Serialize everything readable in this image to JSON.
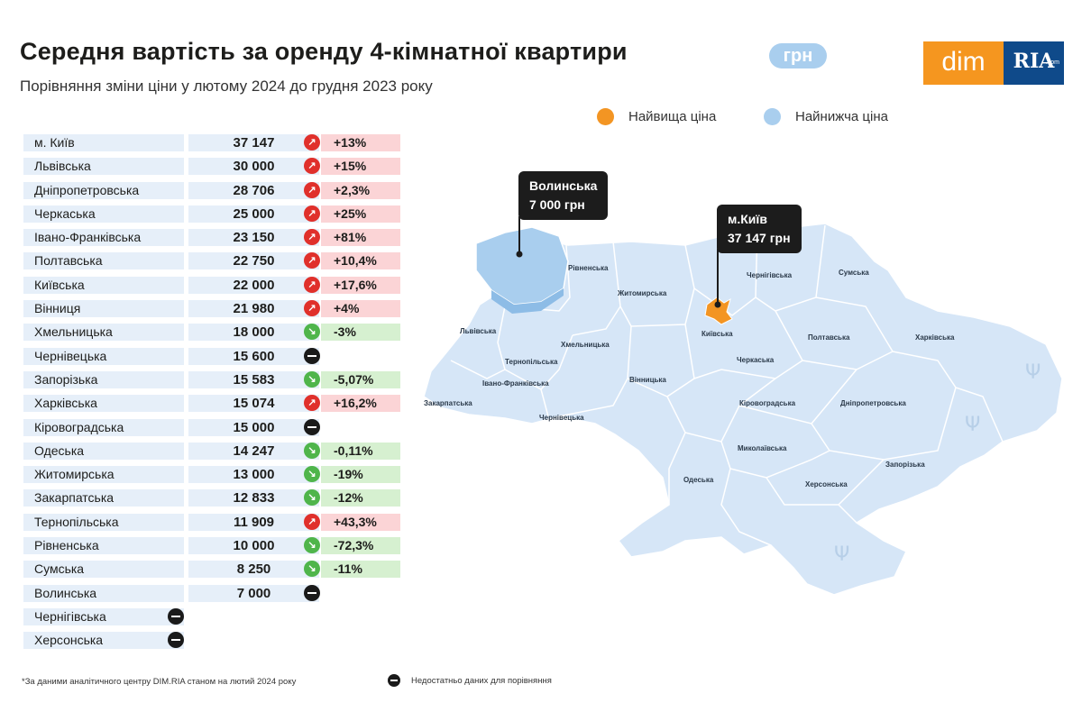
{
  "header": {
    "title": "Середня вартість за оренду 4-кімнатної квартири",
    "unit": "грн",
    "subtitle": "Порівняння зміни ціни у лютому 2024 до грудня 2023 року"
  },
  "logo": {
    "left": "dim",
    "right": "RIA",
    "right_small": ".com"
  },
  "legend": {
    "highest": {
      "label": "Найвища ціна",
      "color": "#f39523"
    },
    "lowest": {
      "label": "Найнижча ціна",
      "color": "#a9ceee"
    }
  },
  "table": [
    {
      "region": "м. Київ",
      "price": "37 147",
      "change": "+13%",
      "trend": "up"
    },
    {
      "region": "Львівська",
      "price": "30 000",
      "change": "+15%",
      "trend": "up"
    },
    {
      "region": "Дніпропетровська",
      "price": "28 706",
      "change": "+2,3%",
      "trend": "up"
    },
    {
      "region": "Черкаська",
      "price": "25 000",
      "change": "+25%",
      "trend": "up"
    },
    {
      "region": "Івано-Франківська",
      "price": "23 150",
      "change": "+81%",
      "trend": "up"
    },
    {
      "region": "Полтавська",
      "price": "22 750",
      "change": "+10,4%",
      "trend": "up"
    },
    {
      "region": "Київська",
      "price": "22 000",
      "change": "+17,6%",
      "trend": "up"
    },
    {
      "region": "Вінниця",
      "price": "21 980",
      "change": "+4%",
      "trend": "up"
    },
    {
      "region": "Хмельницька",
      "price": "18 000",
      "change": "-3%",
      "trend": "down"
    },
    {
      "region": "Чернівецька",
      "price": "15 600",
      "change": "",
      "trend": "na"
    },
    {
      "region": "Запорізька",
      "price": "15 583",
      "change": "-5,07%",
      "trend": "down"
    },
    {
      "region": "Харківська",
      "price": "15 074",
      "change": "+16,2%",
      "trend": "up"
    },
    {
      "region": "Кіровоградська",
      "price": "15 000",
      "change": "",
      "trend": "na"
    },
    {
      "region": "Одеська",
      "price": "14 247",
      "change": "-0,11%",
      "trend": "down"
    },
    {
      "region": "Житомирська",
      "price": "13 000",
      "change": "-19%",
      "trend": "down"
    },
    {
      "region": "Закарпатська",
      "price": "12 833",
      "change": "-12%",
      "trend": "down"
    },
    {
      "region": "Тернопільська",
      "price": "11 909",
      "change": "+43,3%",
      "trend": "up"
    },
    {
      "region": "Рівненська",
      "price": "10 000",
      "change": "-72,3%",
      "trend": "down"
    },
    {
      "region": "Сумська",
      "price": "8 250",
      "change": "-11%",
      "trend": "down"
    },
    {
      "region": "Волинська",
      "price": "7 000",
      "change": "",
      "trend": "na"
    },
    {
      "region": "Чернігівська",
      "price": "",
      "change": "",
      "trend": "na"
    },
    {
      "region": "Херсонська",
      "price": "",
      "change": "",
      "trend": "na"
    }
  ],
  "map": {
    "fill_color": "#d6e6f7",
    "border_color": "#ffffff",
    "highest_color": "#f39523",
    "lowest_color": "#a9ceee",
    "region_labels": [
      "Рівненська",
      "Житомирська",
      "Чернігівська",
      "Сумська",
      "Львівська",
      "Хмельницька",
      "Тернопільська",
      "Івано-Франківська",
      "Закарпатська",
      "Чернівецька",
      "Вінницька",
      "Київська",
      "Черкаська",
      "Полтавська",
      "Харківська",
      "Кіровоградська",
      "Дніпропетровська",
      "Миколаївська",
      "Одеська",
      "Херсонська",
      "Запорізька"
    ],
    "callouts": {
      "lowest": {
        "line1": "Волинська",
        "line2": "7 000 грн"
      },
      "highest": {
        "line1": "м.Київ",
        "line2": "37 147 грн"
      }
    }
  },
  "footnote": "*За даними аналітичного центру DIM.RIA станом на лютий 2024 року",
  "na_note": "Недостатньо даних для порівняння"
}
